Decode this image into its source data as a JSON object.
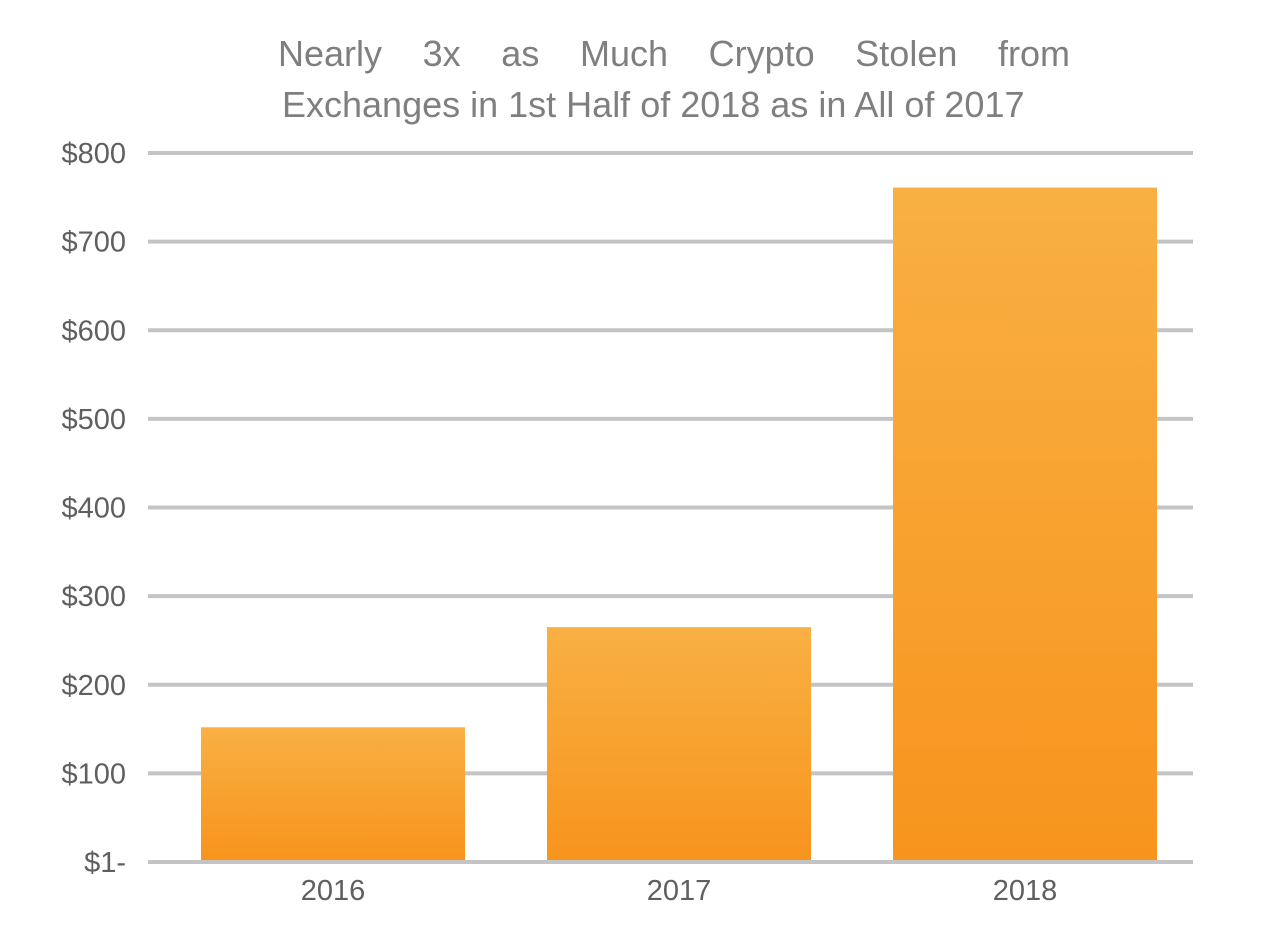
{
  "chart_data": {
    "type": "bar",
    "title_lines": [
      "Nearly 3x as Much Crypto Stolen from",
      "Exchanges in 1st Half of 2018 as in All of 2017"
    ],
    "title": "Nearly 3x as Much Crypto Stolen from Exchanges in 1st Half of 2018 as in All of 2017",
    "categories": [
      "2016",
      "2017",
      "2018"
    ],
    "values": [
      152,
      265,
      761
    ],
    "y_ticks": [
      0,
      100,
      200,
      300,
      400,
      500,
      600,
      700,
      800
    ],
    "y_tick_labels": [
      "$1-",
      "$100",
      "$200",
      "$300",
      "$400",
      "$500",
      "$600",
      "$700",
      "$800"
    ],
    "ylim": [
      0,
      800
    ],
    "grid": true,
    "legend": "none",
    "colors": {
      "bar_top": "#f9b043",
      "bar_bottom": "#f7941d",
      "grid": "#c4c4c4",
      "title": "#7f7f7f",
      "tick_label": "#5f5f5f"
    }
  }
}
